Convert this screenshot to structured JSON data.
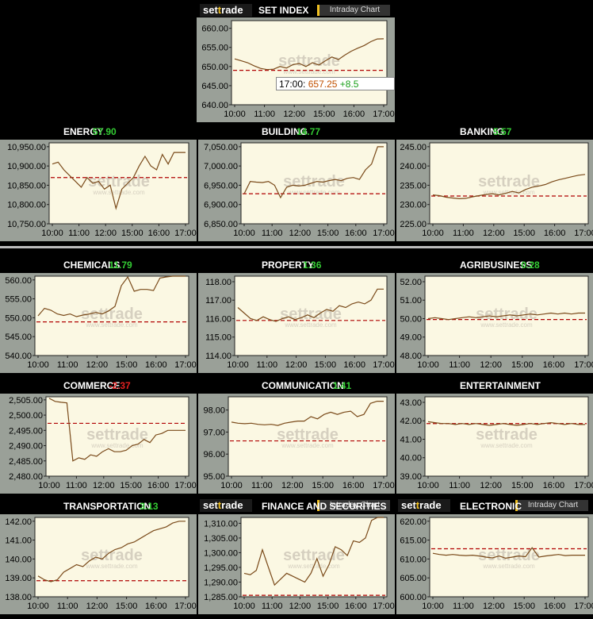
{
  "header": {
    "brand_pre": "set",
    "brand_t": "t",
    "brand_post": "rade",
    "title": "SET INDEX",
    "intraday_label": "Intraday Chart"
  },
  "tooltip": {
    "time": "17:00:",
    "value": "657.25",
    "change": "+8.5"
  },
  "colors": {
    "up": "#33cc33",
    "down": "#e02020",
    "line": "#7a4a1a",
    "ref": "#b00000",
    "bg": "#fbf8e3",
    "frame": "#9aa098",
    "watermark": "#d6d0c0"
  },
  "watermark": {
    "brand": "settrade",
    "url": "www.settrade.com"
  },
  "chart_data": [
    {
      "id": "set",
      "type": "line",
      "title": "SET INDEX",
      "xticks": [
        "10:00",
        "11:00",
        "12:00",
        "15:00",
        "16:00",
        "17:00"
      ],
      "yticks": [
        "660.00",
        "655.00",
        "650.00",
        "645.00",
        "640.00"
      ],
      "ylim": [
        640,
        662
      ],
      "ref": 649.0,
      "values": [
        652,
        651.5,
        651,
        650.2,
        649.5,
        649.2,
        649.3,
        650.0,
        649.6,
        650.5,
        650.8,
        650.0,
        651.0,
        650.4,
        651.5,
        652.5,
        651.8,
        653.0,
        654.0,
        654.8,
        655.5,
        656.5,
        657.2,
        657.25
      ]
    },
    {
      "id": "energy",
      "type": "line",
      "title": "ENERGY",
      "change": "57.90",
      "change_dir": "up",
      "xticks": [
        "10:00",
        "11:00",
        "12:00",
        "15:00",
        "16:00",
        "17:00"
      ],
      "yticks": [
        "10,950.00",
        "10,900.00",
        "10,850.00",
        "10,800.00",
        "10,750.00"
      ],
      "ylim": [
        10750,
        10960
      ],
      "ref": 10870,
      "values": [
        10905,
        10910,
        10890,
        10875,
        10860,
        10845,
        10870,
        10855,
        10860,
        10840,
        10850,
        10790,
        10840,
        10855,
        10870,
        10900,
        10925,
        10900,
        10890,
        10930,
        10905,
        10935,
        10935,
        10935
      ]
    },
    {
      "id": "building",
      "type": "line",
      "title": "BUILDING",
      "change": "14.77",
      "change_dir": "up",
      "xticks": [
        "10:00",
        "11:00",
        "12:00",
        "15:00",
        "16:00",
        "17:00"
      ],
      "yticks": [
        "7,050.00",
        "7,000.00",
        "6,950.00",
        "6,900.00",
        "6,850.00"
      ],
      "ylim": [
        6850,
        7060
      ],
      "ref": 6928,
      "values": [
        6928,
        6960,
        6958,
        6957,
        6960,
        6950,
        6918,
        6945,
        6950,
        6948,
        6950,
        6955,
        6960,
        6958,
        6962,
        6965,
        6962,
        6968,
        6970,
        6965,
        6990,
        7005,
        7050,
        7050
      ]
    },
    {
      "id": "banking",
      "type": "line",
      "title": "BANKING",
      "change": "5.57",
      "change_dir": "up",
      "xticks": [
        "10:00",
        "11:00",
        "12:00",
        "15:00",
        "16:00",
        "17:00"
      ],
      "yticks": [
        "245.00",
        "240.00",
        "235.00",
        "230.00",
        "225.00"
      ],
      "ylim": [
        225,
        246
      ],
      "ref": 232.2,
      "values": [
        232.5,
        232.3,
        231.9,
        231.7,
        231.5,
        231.6,
        232.0,
        232.3,
        232.6,
        232.8,
        232.5,
        232.9,
        233.4,
        233.0,
        233.9,
        234.5,
        234.8,
        235.2,
        235.9,
        236.4,
        236.8,
        237.2,
        237.6,
        237.8
      ]
    },
    {
      "id": "chemicals",
      "type": "line",
      "title": "CHEMICALS",
      "change": "11.79",
      "change_dir": "up",
      "xticks": [
        "10:00",
        "11:00",
        "12:00",
        "15:00",
        "16:00",
        "17:00"
      ],
      "yticks": [
        "560.00",
        "555.00",
        "550.00",
        "545.00",
        "540.00"
      ],
      "ylim": [
        540,
        561
      ],
      "ref": 548.9,
      "values": [
        550.5,
        552.5,
        552.0,
        551.0,
        550.6,
        551.0,
        550.3,
        550.7,
        551.0,
        551.4,
        551.0,
        551.8,
        553.0,
        558.5,
        560.8,
        557.0,
        557.5,
        557.5,
        557.2,
        560.5,
        560.8,
        561.0,
        561.0,
        561.0
      ]
    },
    {
      "id": "property",
      "type": "line",
      "title": "PROPERTY",
      "change": "1.36",
      "change_dir": "up",
      "xticks": [
        "10:00",
        "11:00",
        "12:00",
        "15:00",
        "16:00",
        "17:00"
      ],
      "yticks": [
        "118.00",
        "117.00",
        "116.00",
        "115.00",
        "114.00"
      ],
      "ylim": [
        114,
        118.3
      ],
      "ref": 115.9,
      "values": [
        116.6,
        116.3,
        116.0,
        115.9,
        116.1,
        115.95,
        115.85,
        116.0,
        116.1,
        115.95,
        116.05,
        116.2,
        116.05,
        116.3,
        116.5,
        116.4,
        116.7,
        116.6,
        116.8,
        116.9,
        116.8,
        117.0,
        117.6,
        117.6
      ]
    },
    {
      "id": "agribusiness",
      "type": "line",
      "title": "AGRIBUSINESS",
      "change": "0.28",
      "change_dir": "up",
      "xticks": [
        "10:00",
        "11:00",
        "12:00",
        "15:00",
        "16:00",
        "17:00"
      ],
      "yticks": [
        "52.00",
        "51.00",
        "50.00",
        "49.00",
        "48.00"
      ],
      "ylim": [
        48,
        52.3
      ],
      "ref": 49.95,
      "values": [
        50.0,
        50.05,
        50.0,
        49.95,
        50.0,
        50.05,
        50.1,
        50.05,
        50.1,
        50.15,
        50.1,
        50.15,
        50.2,
        50.15,
        50.2,
        50.25,
        50.2,
        50.25,
        50.3,
        50.25,
        50.3,
        50.25,
        50.3,
        50.3
      ]
    },
    {
      "id": "commerce",
      "type": "line",
      "title": "COMMERCE",
      "change": "-2.37",
      "change_dir": "down",
      "xticks": [
        "10:00",
        "11:00",
        "12:00",
        "15:00",
        "16:00",
        "17:00"
      ],
      "yticks": [
        "2,505.00",
        "2,500.00",
        "2,495.00",
        "2,490.00",
        "2,485.00",
        "2,480.00"
      ],
      "ylim": [
        2480,
        2506
      ],
      "ref": 2497.3,
      "values": [
        2505.5,
        2504.5,
        2504.2,
        2504.0,
        2485.0,
        2486.0,
        2485.5,
        2487.0,
        2486.5,
        2488.0,
        2489.0,
        2488.0,
        2488.0,
        2488.5,
        2490.0,
        2490.5,
        2492.0,
        2491.0,
        2493.5,
        2494.0,
        2495.0,
        2495.0,
        2495.0,
        2495.0
      ]
    },
    {
      "id": "communication",
      "type": "line",
      "title": "COMMUNICATION",
      "change": "1.41",
      "change_dir": "up",
      "xticks": [
        "10:00",
        "11:00",
        "12:00",
        "15:00",
        "16:00",
        "17:00"
      ],
      "yticks": [
        "98.00",
        "97.00",
        "96.00",
        "95.00"
      ],
      "ylim": [
        95,
        98.6
      ],
      "ref": 96.6,
      "values": [
        97.45,
        97.4,
        97.38,
        97.4,
        97.35,
        97.33,
        97.35,
        97.3,
        97.4,
        97.45,
        97.5,
        97.5,
        97.7,
        97.6,
        97.8,
        97.9,
        97.8,
        97.9,
        97.95,
        97.7,
        97.8,
        98.3,
        98.4,
        98.4
      ]
    },
    {
      "id": "entertainment",
      "type": "line",
      "title": "ENTERTAINMENT",
      "change": "",
      "change_dir": "flat",
      "xticks": [
        "10:00",
        "11:00",
        "12:00",
        "15:00",
        "16:00",
        "17:00"
      ],
      "yticks": [
        "43.00",
        "42.00",
        "41.00",
        "40.00",
        "39.00"
      ],
      "ylim": [
        39,
        43.3
      ],
      "ref": 41.85,
      "values": [
        41.95,
        41.9,
        41.85,
        41.85,
        41.8,
        41.85,
        41.8,
        41.85,
        41.8,
        41.75,
        41.8,
        41.85,
        41.8,
        41.75,
        41.8,
        41.85,
        41.8,
        41.85,
        41.9,
        41.85,
        41.8,
        41.85,
        41.8,
        41.8
      ]
    },
    {
      "id": "transportation",
      "type": "line",
      "title": "TRANSPORTATION",
      "change": "3.13",
      "change_dir": "up",
      "xticks": [
        "10:00",
        "11:00",
        "12:00",
        "15:00",
        "16:00",
        "17:00"
      ],
      "yticks": [
        "142.00",
        "141.00",
        "140.00",
        "139.00",
        "138.00"
      ],
      "ylim": [
        138,
        142.2
      ],
      "ref": 138.85,
      "values": [
        139.1,
        138.9,
        138.8,
        138.9,
        139.3,
        139.5,
        139.7,
        139.6,
        139.9,
        140.1,
        140.0,
        140.3,
        140.5,
        140.6,
        140.8,
        140.9,
        141.1,
        141.3,
        141.5,
        141.6,
        141.7,
        141.9,
        142.0,
        142.0
      ]
    },
    {
      "id": "finance",
      "type": "line",
      "title": "FINANCE AND SECURITIES",
      "change": "",
      "change_dir": "flat",
      "xticks": [
        "10:00",
        "11:00",
        "12:00",
        "15:00",
        "16:00",
        "17:00"
      ],
      "yticks": [
        "1,310.00",
        "1,305.00",
        "1,300.00",
        "1,295.00",
        "1,290.00",
        "1,285.00"
      ],
      "ylim": [
        1285,
        1312
      ],
      "ref": 1285.5,
      "values": [
        1293.0,
        1292.5,
        1294.0,
        1301.0,
        1295.0,
        1289.0,
        1291.0,
        1293.0,
        1292.0,
        1291.0,
        1290.0,
        1293.0,
        1298.0,
        1292.0,
        1296.0,
        1302.0,
        1301.0,
        1299.0,
        1304.0,
        1303.5,
        1305.0,
        1311.0,
        1312.0,
        1312.0
      ]
    },
    {
      "id": "electronic",
      "type": "line",
      "title": "ELECTRONIC",
      "change": "",
      "change_dir": "flat",
      "xticks": [
        "10:00",
        "11:00",
        "12:00",
        "15:00",
        "16:00",
        "17:00"
      ],
      "yticks": [
        "620.00",
        "615.00",
        "610.00",
        "605.00",
        "600.00"
      ],
      "ylim": [
        600,
        621
      ],
      "ref": 612.7,
      "values": [
        611.5,
        611.2,
        611.0,
        611.2,
        611.0,
        610.9,
        611.0,
        610.8,
        610.5,
        610.3,
        610.8,
        610.2,
        610.5,
        610.8,
        610.6,
        613.0,
        610.5,
        610.8,
        611.0,
        611.2,
        610.9,
        611.0,
        611.0,
        611.0
      ]
    }
  ]
}
